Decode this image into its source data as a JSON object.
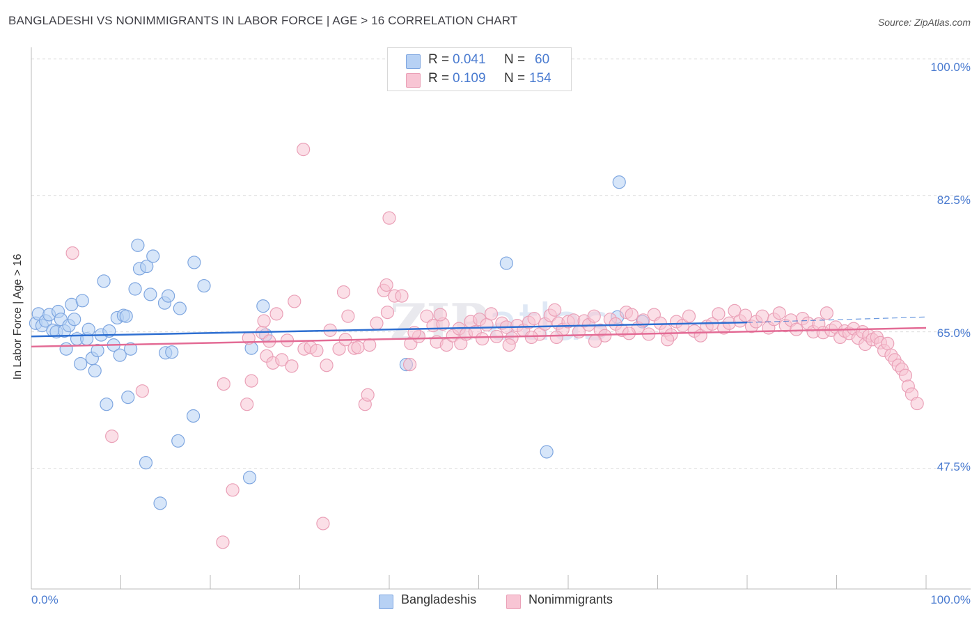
{
  "title": "BANGLADESHI VS NONIMMIGRANTS IN LABOR FORCE | AGE > 16 CORRELATION CHART",
  "source": "Source: ZipAtlas.com",
  "watermark": "ZIPatlas",
  "legend": {
    "rows": [
      {
        "r_label": "R =",
        "r_value": "0.041",
        "n_label": "N =",
        "n_value": "60",
        "color": "#b7d1f4"
      },
      {
        "r_label": "R =",
        "r_value": "0.109",
        "n_label": "N =",
        "n_value": "154",
        "color": "#f8c5d4"
      }
    ]
  },
  "bottom_legend": [
    "Bangladeshis",
    "Nonimmigrants"
  ],
  "colors": {
    "blue_fill": "#b7d1f4",
    "blue_stroke": "#7ea6e0",
    "blue_line": "#2e6fd1",
    "pink_fill": "#f8c5d4",
    "pink_stroke": "#eaa0b7",
    "pink_line": "#e36b95",
    "axis_text": "#4a7bd0"
  },
  "chart_data": {
    "type": "scatter",
    "title": "BANGLADESHI VS NONIMMIGRANTS IN LABOR FORCE | AGE > 16 CORRELATION CHART",
    "xlabel": "",
    "ylabel": "In Labor Force | Age > 16",
    "xlim": [
      0,
      100
    ],
    "ylim": [
      32,
      101.5
    ],
    "x_tick_labels": [
      "0.0%",
      "100.0%"
    ],
    "y_tick_labels": [
      "100.0%",
      "82.5%",
      "65.0%",
      "47.5%"
    ],
    "y_ticks": [
      100,
      82.5,
      65,
      47.5
    ],
    "grid": true,
    "legend_position": "top-center",
    "series": [
      {
        "name": "Bangladeshis",
        "trend": {
          "x0": 0,
          "y0": 64.4,
          "x1": 80,
          "y1": 66.2,
          "dashed_to_x": 100,
          "dashed_to_y": 66.9
        },
        "points": [
          [
            0.5,
            66.1
          ],
          [
            0.8,
            67.3
          ],
          [
            1.2,
            65.8
          ],
          [
            1.6,
            66.4
          ],
          [
            2.0,
            67.2
          ],
          [
            2.4,
            65.2
          ],
          [
            2.8,
            65.0
          ],
          [
            3.0,
            67.6
          ],
          [
            3.3,
            66.6
          ],
          [
            3.7,
            65.1
          ],
          [
            3.9,
            62.8
          ],
          [
            4.2,
            65.8
          ],
          [
            4.5,
            68.5
          ],
          [
            4.8,
            66.6
          ],
          [
            5.1,
            64.1
          ],
          [
            5.5,
            60.9
          ],
          [
            5.7,
            69.0
          ],
          [
            6.2,
            64.1
          ],
          [
            6.4,
            65.3
          ],
          [
            6.8,
            61.6
          ],
          [
            7.1,
            60.0
          ],
          [
            7.4,
            62.6
          ],
          [
            7.8,
            64.6
          ],
          [
            8.1,
            71.5
          ],
          [
            8.4,
            55.7
          ],
          [
            8.7,
            65.1
          ],
          [
            9.2,
            63.3
          ],
          [
            9.6,
            66.8
          ],
          [
            9.9,
            62.0
          ],
          [
            10.3,
            67.1
          ],
          [
            10.6,
            67.0
          ],
          [
            10.8,
            56.6
          ],
          [
            11.1,
            62.8
          ],
          [
            11.6,
            70.5
          ],
          [
            11.9,
            76.1
          ],
          [
            12.1,
            73.1
          ],
          [
            12.8,
            48.2
          ],
          [
            12.9,
            73.4
          ],
          [
            13.3,
            69.8
          ],
          [
            13.6,
            74.7
          ],
          [
            14.4,
            43.0
          ],
          [
            14.9,
            68.7
          ],
          [
            15.0,
            62.3
          ],
          [
            15.3,
            69.6
          ],
          [
            15.7,
            62.4
          ],
          [
            16.4,
            51.0
          ],
          [
            16.6,
            68.0
          ],
          [
            18.1,
            54.2
          ],
          [
            18.2,
            73.9
          ],
          [
            19.3,
            70.9
          ],
          [
            24.4,
            46.3
          ],
          [
            24.6,
            62.9
          ],
          [
            25.9,
            68.3
          ],
          [
            26.2,
            64.6
          ],
          [
            41.9,
            60.8
          ],
          [
            53.1,
            73.8
          ],
          [
            57.6,
            49.6
          ],
          [
            65.5,
            66.9
          ],
          [
            65.7,
            84.2
          ],
          [
            68.3,
            66.3
          ]
        ]
      },
      {
        "name": "Nonimmigrants",
        "trend": {
          "x0": 0,
          "y0": 63.1,
          "x1": 100,
          "y1": 65.5
        },
        "points": [
          [
            4.6,
            75.1
          ],
          [
            9.0,
            51.6
          ],
          [
            12.4,
            57.4
          ],
          [
            21.4,
            38.0
          ],
          [
            21.5,
            58.3
          ],
          [
            22.5,
            44.7
          ],
          [
            24.1,
            55.7
          ],
          [
            24.6,
            58.7
          ],
          [
            25.8,
            64.9
          ],
          [
            26.3,
            61.9
          ],
          [
            26.6,
            63.8
          ],
          [
            27.0,
            61.0
          ],
          [
            27.4,
            67.3
          ],
          [
            28.0,
            61.4
          ],
          [
            28.6,
            63.9
          ],
          [
            29.1,
            60.6
          ],
          [
            29.4,
            68.9
          ],
          [
            30.4,
            88.4
          ],
          [
            30.5,
            62.8
          ],
          [
            31.2,
            63.0
          ],
          [
            32.6,
            40.4
          ],
          [
            33.0,
            60.7
          ],
          [
            33.4,
            65.2
          ],
          [
            34.4,
            62.8
          ],
          [
            34.9,
            70.1
          ],
          [
            35.1,
            64.0
          ],
          [
            35.4,
            67.0
          ],
          [
            36.1,
            62.9
          ],
          [
            37.3,
            55.7
          ],
          [
            37.6,
            56.9
          ],
          [
            37.8,
            63.3
          ],
          [
            39.4,
            70.3
          ],
          [
            39.7,
            71.0
          ],
          [
            39.8,
            67.5
          ],
          [
            40.0,
            79.6
          ],
          [
            40.6,
            69.6
          ],
          [
            41.4,
            69.6
          ],
          [
            42.3,
            60.8
          ],
          [
            42.4,
            63.5
          ],
          [
            43.3,
            64.4
          ],
          [
            44.2,
            67.0
          ],
          [
            44.9,
            65.8
          ],
          [
            45.3,
            63.7
          ],
          [
            46.0,
            66.0
          ],
          [
            46.4,
            63.3
          ],
          [
            47.1,
            64.5
          ],
          [
            47.8,
            65.4
          ],
          [
            48.0,
            63.5
          ],
          [
            48.6,
            64.7
          ],
          [
            49.1,
            66.3
          ],
          [
            49.6,
            65.0
          ],
          [
            50.1,
            66.6
          ],
          [
            50.9,
            65.9
          ],
          [
            51.4,
            67.3
          ],
          [
            52.0,
            64.4
          ],
          [
            52.6,
            66.1
          ],
          [
            53.1,
            65.6
          ],
          [
            53.7,
            64.2
          ],
          [
            54.3,
            65.8
          ],
          [
            55.0,
            65.2
          ],
          [
            55.6,
            66.2
          ],
          [
            56.2,
            66.7
          ],
          [
            56.8,
            64.7
          ],
          [
            57.4,
            66.0
          ],
          [
            58.0,
            67.1
          ],
          [
            58.5,
            67.8
          ],
          [
            58.9,
            66.1
          ],
          [
            59.4,
            65.3
          ],
          [
            60.0,
            66.3
          ],
          [
            60.6,
            66.5
          ],
          [
            61.2,
            65.0
          ],
          [
            61.8,
            66.4
          ],
          [
            62.3,
            65.9
          ],
          [
            62.9,
            67.0
          ],
          [
            63.6,
            65.2
          ],
          [
            64.1,
            64.5
          ],
          [
            64.7,
            66.6
          ],
          [
            65.3,
            66.0
          ],
          [
            66.0,
            65.2
          ],
          [
            66.5,
            67.5
          ],
          [
            67.1,
            67.2
          ],
          [
            67.8,
            65.5
          ],
          [
            68.4,
            66.5
          ],
          [
            69.0,
            64.7
          ],
          [
            69.6,
            67.2
          ],
          [
            70.3,
            66.1
          ],
          [
            70.9,
            65.2
          ],
          [
            71.5,
            64.6
          ],
          [
            72.1,
            66.3
          ],
          [
            72.8,
            65.8
          ],
          [
            73.5,
            67.0
          ],
          [
            74.1,
            65.1
          ],
          [
            74.8,
            64.5
          ],
          [
            75.5,
            65.7
          ],
          [
            76.1,
            66.0
          ],
          [
            76.8,
            67.3
          ],
          [
            77.4,
            65.5
          ],
          [
            78.0,
            66.1
          ],
          [
            78.6,
            67.7
          ],
          [
            79.2,
            66.4
          ],
          [
            79.8,
            67.1
          ],
          [
            80.5,
            65.7
          ],
          [
            81.0,
            66.3
          ],
          [
            81.7,
            67.0
          ],
          [
            82.4,
            65.5
          ],
          [
            83.0,
            66.6
          ],
          [
            83.6,
            67.4
          ],
          [
            84.3,
            65.8
          ],
          [
            84.9,
            66.5
          ],
          [
            85.5,
            65.3
          ],
          [
            86.2,
            66.7
          ],
          [
            86.8,
            66.1
          ],
          [
            87.4,
            65.0
          ],
          [
            88.0,
            66.0
          ],
          [
            88.5,
            64.9
          ],
          [
            88.9,
            67.4
          ],
          [
            89.4,
            65.2
          ],
          [
            89.9,
            65.6
          ],
          [
            90.4,
            64.3
          ],
          [
            90.9,
            65.1
          ],
          [
            91.4,
            64.8
          ],
          [
            91.9,
            65.4
          ],
          [
            92.4,
            64.2
          ],
          [
            92.9,
            65.0
          ],
          [
            93.2,
            63.4
          ],
          [
            93.6,
            64.5
          ],
          [
            94.0,
            64.0
          ],
          [
            94.5,
            64.3
          ],
          [
            94.9,
            63.6
          ],
          [
            95.3,
            62.6
          ],
          [
            95.7,
            63.5
          ],
          [
            96.1,
            62.0
          ],
          [
            96.5,
            61.4
          ],
          [
            96.9,
            60.7
          ],
          [
            97.3,
            60.2
          ],
          [
            97.7,
            59.4
          ],
          [
            98.0,
            58.0
          ],
          [
            98.4,
            57.0
          ],
          [
            99.0,
            55.8
          ],
          [
            24.3,
            64.2
          ],
          [
            26.0,
            66.4
          ],
          [
            31.9,
            62.6
          ],
          [
            36.5,
            63.0
          ],
          [
            38.6,
            66.1
          ],
          [
            42.8,
            64.9
          ],
          [
            45.7,
            67.2
          ],
          [
            50.4,
            64.1
          ],
          [
            53.4,
            63.3
          ],
          [
            55.9,
            64.3
          ],
          [
            58.7,
            64.3
          ],
          [
            63.0,
            63.8
          ],
          [
            66.8,
            64.8
          ],
          [
            71.1,
            64.0
          ]
        ]
      }
    ]
  }
}
